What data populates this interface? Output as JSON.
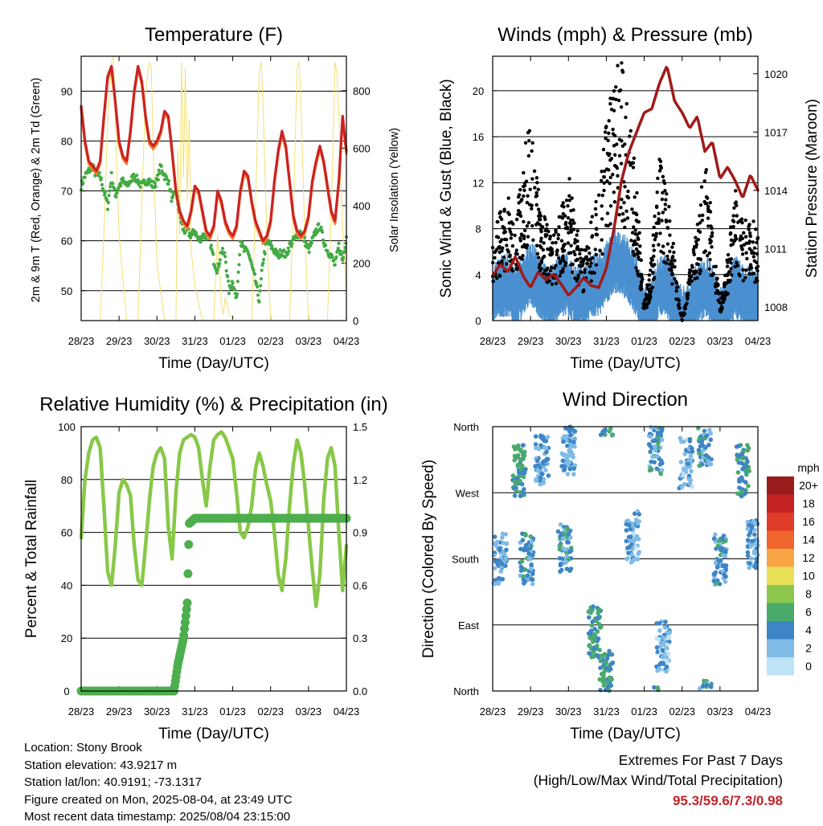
{
  "x_ticks": [
    "28/23",
    "29/23",
    "30/23",
    "31/23",
    "01/23",
    "02/23",
    "03/23",
    "04/23"
  ],
  "x_label": "Time (Day/UTC)",
  "colors": {
    "temp_2m": "#cc2222",
    "temp_9m": "#f08030",
    "dewpoint": "#44aa44",
    "solar": "#f5e070",
    "gust": "#000000",
    "wind": "#4a90d0",
    "pressure": "#a01a1a",
    "rh": "#88c848",
    "precip": "#4cae4c"
  },
  "chart_data": [
    {
      "type": "line",
      "title": "Temperature (F)",
      "xlabel": "Time (Day/UTC)",
      "ylabel": "2m & 9m T (Red, Orange) & 2m Td (Green)",
      "y2label": "Solar Insolation (Yellow)",
      "x_range_days": [
        0,
        7
      ],
      "ylim": [
        44,
        97
      ],
      "y_ticks": [
        50,
        60,
        70,
        80,
        90
      ],
      "y2lim": [
        0,
        920
      ],
      "y2_ticks": [
        0,
        200,
        400,
        600,
        800
      ],
      "grid": true,
      "series": [
        {
          "key": "temperature",
          "axis": "left",
          "x": [
            0,
            0.1,
            0.2,
            0.3,
            0.4,
            0.5,
            0.6,
            0.7,
            0.8,
            0.9,
            1.0,
            1.1,
            1.2,
            1.3,
            1.4,
            1.5,
            1.6,
            1.7,
            1.8,
            1.9,
            2.0,
            2.1,
            2.2,
            2.3,
            2.4,
            2.5,
            2.6,
            2.7,
            2.8,
            2.9,
            3.0,
            3.1,
            3.2,
            3.3,
            3.4,
            3.5,
            3.6,
            3.7,
            3.8,
            3.9,
            4.0,
            4.1,
            4.2,
            4.3,
            4.4,
            4.5,
            4.6,
            4.7,
            4.8,
            4.9,
            5.0,
            5.1,
            5.2,
            5.3,
            5.4,
            5.5,
            5.6,
            5.7,
            5.8,
            5.9,
            6.0,
            6.1,
            6.2,
            6.3,
            6.4,
            6.5,
            6.6,
            6.7,
            6.8,
            6.9,
            7.0
          ],
          "y": [
            87,
            80,
            76,
            75,
            74,
            76,
            85,
            93,
            95,
            88,
            80,
            77,
            76,
            82,
            90,
            95,
            92,
            85,
            80,
            79,
            80,
            82,
            86,
            85,
            78,
            70,
            66,
            64,
            63,
            66,
            71,
            70,
            66,
            62,
            61,
            63,
            70,
            68,
            64,
            62,
            61,
            63,
            70,
            74,
            73,
            68,
            64,
            62,
            60,
            61,
            64,
            72,
            78,
            82,
            79,
            72,
            65,
            62,
            61,
            62,
            65,
            72,
            76,
            79,
            76,
            71,
            66,
            64,
            72,
            85,
            78
          ]
        },
        {
          "key": "dewpoint",
          "axis": "left",
          "x": [
            0,
            0.1,
            0.2,
            0.3,
            0.4,
            0.5,
            0.6,
            0.7,
            0.8,
            0.9,
            1.0,
            1.1,
            1.2,
            1.3,
            1.4,
            1.5,
            1.6,
            1.7,
            1.8,
            1.9,
            2.0,
            2.1,
            2.2,
            2.3,
            2.4,
            2.5,
            2.6,
            2.7,
            2.8,
            2.9,
            3.0,
            3.1,
            3.2,
            3.3,
            3.4,
            3.5,
            3.6,
            3.7,
            3.8,
            3.9,
            4.0,
            4.1,
            4.2,
            4.3,
            4.4,
            4.5,
            4.6,
            4.7,
            4.8,
            4.9,
            5.0,
            5.1,
            5.2,
            5.3,
            5.4,
            5.5,
            5.6,
            5.7,
            5.8,
            5.9,
            6.0,
            6.1,
            6.2,
            6.3,
            6.4,
            6.5,
            6.6,
            6.7,
            6.8,
            6.9,
            7.0
          ],
          "y": [
            71,
            73,
            74,
            75,
            73,
            73,
            70,
            67,
            73,
            69,
            71,
            72,
            71,
            72,
            73,
            72,
            71,
            72,
            72,
            71,
            72,
            75,
            73,
            72,
            68,
            70,
            65,
            62,
            62,
            61,
            62,
            60,
            61,
            61,
            60,
            56,
            54,
            58,
            57,
            50,
            52,
            48,
            60,
            58,
            58,
            55,
            52,
            48,
            56,
            60,
            59,
            58,
            57,
            58,
            57,
            59,
            60,
            61,
            62,
            60,
            58,
            60,
            62,
            63,
            60,
            58,
            57,
            55,
            59,
            56,
            61
          ]
        },
        {
          "key": "solar",
          "axis": "right",
          "x": [
            0,
            0.5,
            0.6,
            0.7,
            0.8,
            0.85,
            0.9,
            1.0,
            1.2,
            1.5,
            1.6,
            1.7,
            1.8,
            1.85,
            1.9,
            2.0,
            2.2,
            2.5,
            2.55,
            2.6,
            2.65,
            2.7,
            2.75,
            2.8,
            2.85,
            2.9,
            3.0,
            3.2,
            3.5,
            3.6,
            3.7,
            3.75,
            3.8,
            3.9,
            4.0,
            4.2,
            4.5,
            4.6,
            4.7,
            4.75,
            4.8,
            4.9,
            5.0,
            5.2,
            5.5,
            5.6,
            5.7,
            5.75,
            5.8,
            5.9,
            6.0,
            6.2,
            6.5,
            6.6,
            6.7,
            6.75,
            6.8,
            6.9,
            7.0
          ],
          "y": [
            0,
            0,
            300,
            700,
            900,
            920,
            700,
            300,
            0,
            0,
            400,
            800,
            900,
            880,
            600,
            200,
            0,
            0,
            600,
            300,
            900,
            500,
            880,
            420,
            700,
            250,
            120,
            0,
            0,
            300,
            60,
            20,
            80,
            30,
            0,
            0,
            0,
            400,
            870,
            900,
            750,
            300,
            0,
            0,
            0,
            380,
            880,
            900,
            760,
            310,
            0,
            0,
            0,
            370,
            900,
            860,
            720,
            320,
            100
          ]
        }
      ]
    },
    {
      "type": "line",
      "title": "Winds (mph) & Pressure (mb)",
      "xlabel": "Time (Day/UTC)",
      "ylabel": "Sonic Wind & Gust (Blue, Black)",
      "y2label": "Station Pressure (Maroon)",
      "ylim": [
        0,
        23
      ],
      "y_ticks": [
        0,
        4,
        8,
        12,
        16,
        20
      ],
      "y2lim": [
        1007.3,
        1020.9
      ],
      "y2_ticks": [
        1008,
        1011,
        1014,
        1017,
        1020
      ],
      "grid": true,
      "series": [
        {
          "key": "gust",
          "axis": "left",
          "x": [
            0,
            0.2,
            0.4,
            0.6,
            0.8,
            1.0,
            1.2,
            1.4,
            1.6,
            1.8,
            2.0,
            2.2,
            2.4,
            2.6,
            2.8,
            3.0,
            3.2,
            3.4,
            3.6,
            3.8,
            4.0,
            4.2,
            4.4,
            4.6,
            4.8,
            5.0,
            5.2,
            5.4,
            5.6,
            5.8,
            6.0,
            6.2,
            6.4,
            6.6,
            6.8,
            7.0
          ],
          "y": [
            5,
            7,
            8,
            6,
            10,
            12,
            8,
            6,
            5,
            7,
            9,
            6,
            4,
            6,
            8,
            12,
            15,
            16,
            13,
            8,
            1,
            4,
            10,
            8,
            4,
            0,
            3,
            6,
            10,
            6,
            1,
            4,
            8,
            6,
            7,
            5
          ]
        },
        {
          "key": "wind",
          "axis": "left",
          "x": [
            0,
            0.2,
            0.4,
            0.6,
            0.8,
            1.0,
            1.2,
            1.4,
            1.6,
            1.8,
            2.0,
            2.2,
            2.4,
            2.6,
            2.8,
            3.0,
            3.2,
            3.4,
            3.6,
            3.8,
            4.0,
            4.2,
            4.4,
            4.6,
            4.8,
            5.0,
            5.2,
            5.4,
            5.6,
            5.8,
            6.0,
            6.2,
            6.4,
            6.6,
            6.8,
            7.0
          ],
          "y": [
            2,
            3,
            3,
            2,
            3,
            4,
            3,
            2,
            2,
            3,
            3,
            2,
            2,
            3,
            3,
            4,
            5,
            5,
            4,
            3,
            0,
            1,
            3,
            3,
            1,
            0,
            1,
            2,
            3,
            2,
            0,
            1,
            3,
            2,
            2,
            2
          ]
        },
        {
          "key": "pressure",
          "axis": "right",
          "x": [
            0,
            0.2,
            0.4,
            0.6,
            0.8,
            1.0,
            1.2,
            1.4,
            1.6,
            1.8,
            2.0,
            2.2,
            2.4,
            2.6,
            2.8,
            3.0,
            3.2,
            3.4,
            3.6,
            3.8,
            4.0,
            4.2,
            4.4,
            4.6,
            4.8,
            5.0,
            5.2,
            5.4,
            5.6,
            5.8,
            6.0,
            6.2,
            6.4,
            6.6,
            6.8,
            7.0
          ],
          "y": [
            1009.6,
            1010.2,
            1009.8,
            1010.6,
            1009.6,
            1009.0,
            1009.8,
            1009.4,
            1009.7,
            1009.2,
            1008.6,
            1009.0,
            1009.5,
            1009.1,
            1009.0,
            1010.0,
            1012.0,
            1014.5,
            1016.0,
            1017.0,
            1018.0,
            1018.2,
            1019.5,
            1020.4,
            1018.6,
            1018.0,
            1017.2,
            1017.8,
            1016.0,
            1016.5,
            1014.6,
            1015.2,
            1014.5,
            1013.6,
            1014.8,
            1014.0
          ]
        }
      ]
    },
    {
      "type": "line",
      "title": "Relative Humidity (%) & Precipitation (in)",
      "xlabel": "Time (Day/UTC)",
      "ylabel": "Percent & Total Rainfall",
      "ylim": [
        0,
        100
      ],
      "y_ticks": [
        0,
        20,
        40,
        60,
        80,
        100
      ],
      "y2lim": [
        0,
        1.5
      ],
      "y2_ticks": [
        "0.0",
        "0.3",
        "0.6",
        "0.9",
        "1.2",
        "1.5"
      ],
      "grid": true,
      "series": [
        {
          "key": "rh",
          "axis": "left",
          "x": [
            0,
            0.1,
            0.2,
            0.3,
            0.4,
            0.5,
            0.6,
            0.7,
            0.8,
            0.9,
            1.0,
            1.1,
            1.2,
            1.3,
            1.4,
            1.5,
            1.6,
            1.7,
            1.8,
            1.9,
            2.0,
            2.1,
            2.2,
            2.3,
            2.4,
            2.5,
            2.6,
            2.7,
            2.8,
            2.9,
            3.0,
            3.1,
            3.2,
            3.3,
            3.4,
            3.5,
            3.6,
            3.7,
            3.8,
            3.9,
            4.0,
            4.1,
            4.2,
            4.3,
            4.4,
            4.5,
            4.6,
            4.7,
            4.8,
            4.9,
            5.0,
            5.1,
            5.2,
            5.3,
            5.4,
            5.5,
            5.6,
            5.7,
            5.8,
            5.9,
            6.0,
            6.1,
            6.2,
            6.3,
            6.4,
            6.5,
            6.6,
            6.7,
            6.8,
            6.9,
            7.0
          ],
          "y": [
            58,
            80,
            90,
            95,
            96,
            92,
            70,
            45,
            40,
            55,
            75,
            80,
            78,
            74,
            55,
            42,
            40,
            55,
            72,
            85,
            90,
            92,
            88,
            62,
            50,
            75,
            90,
            95,
            96,
            97,
            96,
            92,
            80,
            70,
            85,
            95,
            97,
            98,
            96,
            92,
            88,
            75,
            60,
            58,
            62,
            70,
            84,
            90,
            85,
            78,
            72,
            60,
            44,
            38,
            50,
            70,
            86,
            95,
            90,
            78,
            62,
            46,
            32,
            44,
            72,
            88,
            92,
            85,
            60,
            38,
            55
          ]
        },
        {
          "key": "precip",
          "axis": "right",
          "x": [
            0,
            2.45,
            2.55,
            2.7,
            2.8,
            2.85,
            3.0,
            7.0
          ],
          "y": [
            0,
            0,
            0.15,
            0.3,
            0.5,
            0.95,
            0.98,
            0.98
          ]
        }
      ]
    },
    {
      "type": "scatter",
      "title": "Wind Direction",
      "xlabel": "Time (Day/UTC)",
      "ylabel": "Direction (Colored By Speed)",
      "y_ticks": [
        "North",
        "West",
        "South",
        "East",
        "North"
      ],
      "ylim_deg": [
        0,
        360
      ],
      "legend_title": "mph",
      "legend_labels": [
        "20+",
        "18",
        "16",
        "14",
        "12",
        "10",
        "8",
        "6",
        "4",
        "2",
        "0"
      ],
      "legend_colors": [
        "#9b1c1c",
        "#c42223",
        "#e03c2a",
        "#f0642e",
        "#f7a545",
        "#e8df58",
        "#8cc84e",
        "#4aaa6c",
        "#3d85c6",
        "#80bbe6",
        "#bfe3f7"
      ],
      "clusters": [
        {
          "x": 0.2,
          "dir": 180,
          "speed": 3
        },
        {
          "x": 0.7,
          "dir": 300,
          "speed": 5
        },
        {
          "x": 0.9,
          "dir": 180,
          "speed": 4
        },
        {
          "x": 1.3,
          "dir": 315,
          "speed": 3
        },
        {
          "x": 1.9,
          "dir": 195,
          "speed": 4
        },
        {
          "x": 2.0,
          "dir": 330,
          "speed": 3
        },
        {
          "x": 2.7,
          "dir": 80,
          "speed": 5
        },
        {
          "x": 3.0,
          "dir": 20,
          "speed": 5
        },
        {
          "x": 3.7,
          "dir": 210,
          "speed": 2
        },
        {
          "x": 4.3,
          "dir": 330,
          "speed": 4
        },
        {
          "x": 4.5,
          "dir": 60,
          "speed": 2
        },
        {
          "x": 5.1,
          "dir": 310,
          "speed": 2
        },
        {
          "x": 5.6,
          "dir": 340,
          "speed": 4
        },
        {
          "x": 6.0,
          "dir": 180,
          "speed": 4
        },
        {
          "x": 6.6,
          "dir": 300,
          "speed": 5
        },
        {
          "x": 6.9,
          "dir": 200,
          "speed": 3
        }
      ]
    }
  ],
  "info": {
    "location": "Location: Stony Brook",
    "elevation": "Station elevation: 43.9217 m",
    "latlon": "Station lat/lon: 40.9191; -73.1317",
    "created": "Figure created on Mon, 2025-08-04, at 23:49 UTC",
    "recent": "Most recent data timestamp: 2025/08/04 23:15:00"
  },
  "extremes": {
    "title": "Extremes For Past 7 Days",
    "subtitle": "(High/Low/Max Wind/Total Precipitation)",
    "values": "95.3/59.6/7.3/0.98"
  }
}
